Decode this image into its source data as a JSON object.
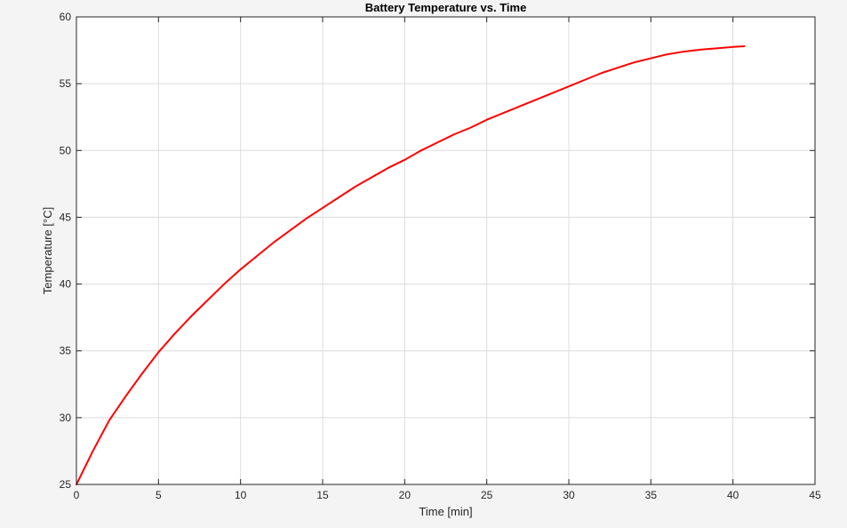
{
  "chart_data": {
    "type": "line",
    "title": "Battery Temperature vs. Time",
    "xlabel": "Time [min]",
    "ylabel": "Temperature [°C]",
    "xlim": [
      0,
      45
    ],
    "ylim": [
      25,
      60
    ],
    "xticks": [
      0,
      5,
      10,
      15,
      20,
      25,
      30,
      35,
      40,
      45
    ],
    "yticks": [
      25,
      30,
      35,
      40,
      45,
      50,
      55,
      60
    ],
    "grid": true,
    "legend": "none",
    "series": [
      {
        "color": "#ff0000",
        "x": [
          0,
          1,
          2,
          3,
          4,
          5,
          6,
          7,
          8,
          9,
          10,
          11,
          12,
          13,
          14,
          15,
          16,
          17,
          18,
          19,
          20,
          21,
          22,
          23,
          24,
          25,
          26,
          27,
          28,
          29,
          30,
          31,
          32,
          33,
          34,
          35,
          36,
          37,
          38,
          39,
          40,
          40.7
        ],
        "y": [
          25.0,
          27.5,
          29.8,
          31.6,
          33.3,
          34.9,
          36.3,
          37.6,
          38.8,
          40.0,
          41.1,
          42.1,
          43.1,
          44.0,
          44.9,
          45.7,
          46.5,
          47.3,
          48.0,
          48.7,
          49.3,
          50.0,
          50.6,
          51.2,
          51.7,
          52.3,
          52.8,
          53.3,
          53.8,
          54.3,
          54.8,
          55.3,
          55.8,
          56.2,
          56.6,
          56.9,
          57.2,
          57.4,
          57.55,
          57.65,
          57.75,
          57.8
        ]
      }
    ]
  }
}
